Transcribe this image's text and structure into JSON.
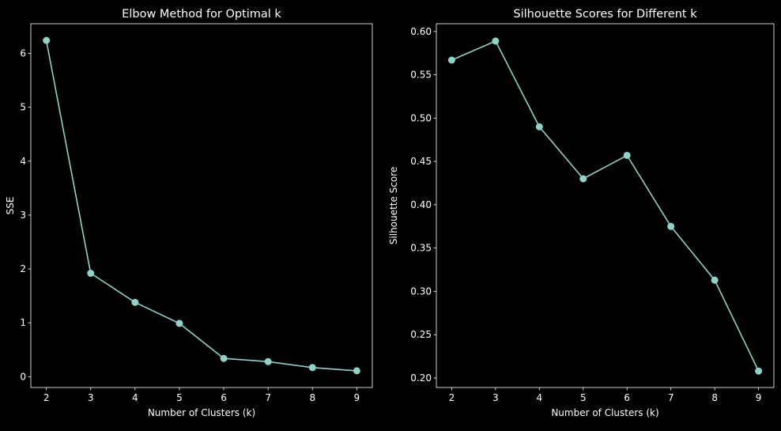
{
  "chart_data": [
    {
      "type": "line",
      "title": "Elbow Method for Optimal k",
      "xlabel": "Number of Clusters (k)",
      "ylabel": "SSE",
      "x": [
        2,
        3,
        4,
        5,
        6,
        7,
        8,
        9
      ],
      "series": [
        {
          "values": [
            6.24,
            1.92,
            1.38,
            0.99,
            0.34,
            0.28,
            0.17,
            0.11
          ]
        }
      ],
      "xlim": [
        1.65,
        9.35
      ],
      "ylim": [
        -0.2,
        6.55
      ],
      "xticks": [
        2,
        3,
        4,
        5,
        6,
        7,
        8,
        9
      ],
      "yticks": [
        0,
        1,
        2,
        3,
        4,
        5,
        6
      ],
      "ytick_labels": [
        "0",
        "1",
        "2",
        "3",
        "4",
        "5",
        "6"
      ],
      "grid": false,
      "line_color": "#8dd3c7"
    },
    {
      "type": "line",
      "title": "Silhouette Scores for Different k",
      "xlabel": "Number of Clusters (k)",
      "ylabel": "Silhouette Score",
      "x": [
        2,
        3,
        4,
        5,
        6,
        7,
        8,
        9
      ],
      "series": [
        {
          "values": [
            0.567,
            0.589,
            0.49,
            0.43,
            0.457,
            0.375,
            0.313,
            0.208
          ]
        }
      ],
      "xlim": [
        1.65,
        9.35
      ],
      "ylim": [
        0.189,
        0.609
      ],
      "xticks": [
        2,
        3,
        4,
        5,
        6,
        7,
        8,
        9
      ],
      "yticks": [
        0.2,
        0.25,
        0.3,
        0.35,
        0.4,
        0.45,
        0.5,
        0.55,
        0.6
      ],
      "ytick_labels": [
        "0.20",
        "0.25",
        "0.30",
        "0.35",
        "0.40",
        "0.45",
        "0.50",
        "0.55",
        "0.60"
      ],
      "grid": false,
      "line_color": "#8dd3c7"
    }
  ]
}
